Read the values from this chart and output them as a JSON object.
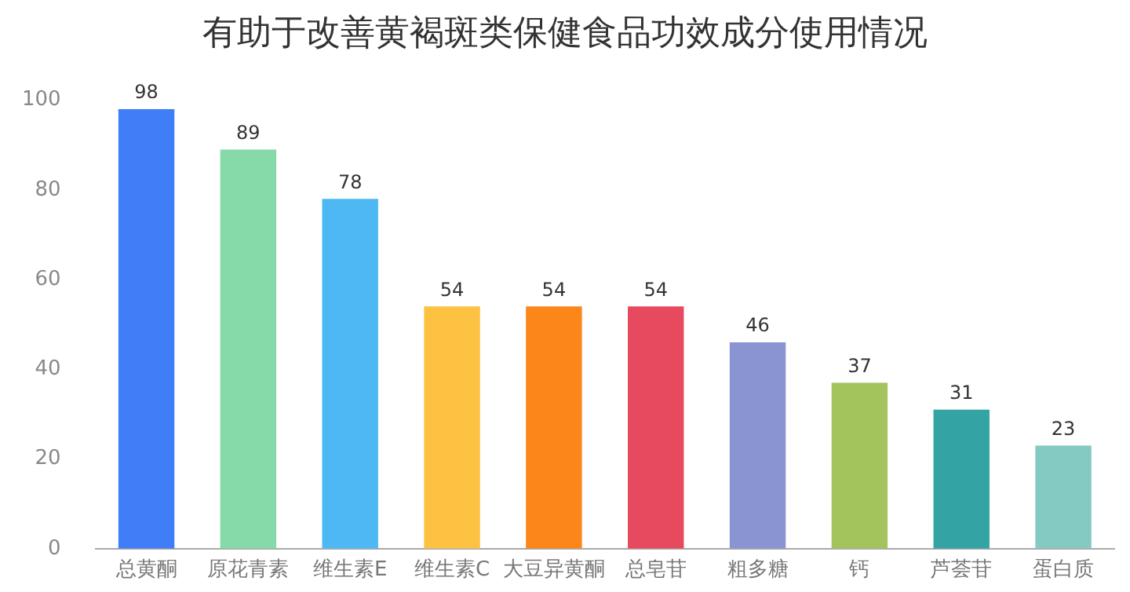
{
  "chart_data": {
    "type": "bar",
    "title": "有助于改善黄褐斑类保健食品功效成分使用情况",
    "categories": [
      "总黄酮",
      "原花青素",
      "维生素E",
      "维生素C",
      "大豆异黄酮",
      "总皂苷",
      "粗多糖",
      "钙",
      "芦荟苷",
      "蛋白质"
    ],
    "values": [
      98,
      89,
      78,
      54,
      54,
      54,
      46,
      37,
      31,
      23
    ],
    "colors": [
      "#3f7ef7",
      "#86d9a9",
      "#4db8f3",
      "#fdc242",
      "#fb861a",
      "#e74a5e",
      "#8a94d3",
      "#a3c45d",
      "#33a3a4",
      "#85c9c3"
    ],
    "ylim": [
      0,
      100
    ],
    "yticks": [
      0,
      20,
      40,
      60,
      80,
      100
    ],
    "grid": false,
    "legend": false,
    "data_labels": true
  }
}
